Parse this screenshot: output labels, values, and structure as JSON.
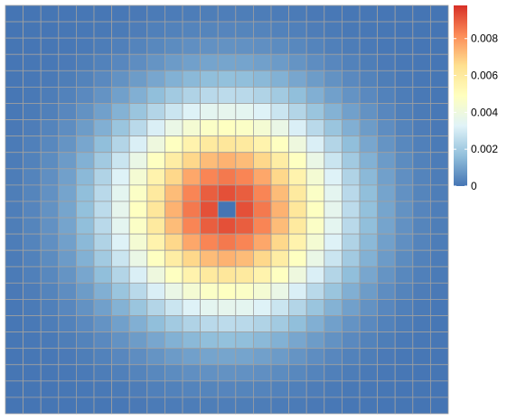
{
  "chart_data": {
    "type": "heatmap",
    "title": "",
    "xlabel": "",
    "ylabel": "",
    "grid": true,
    "legend_position": "right",
    "n_rows": 25,
    "n_cols": 25,
    "value_model": {
      "kind": "radial-gaussian",
      "peak_value": 0.0095,
      "center_row": 12,
      "center_col": 12,
      "sigma_cells": 4.3,
      "center_cell_value": 0
    },
    "colorbar": {
      "min": 0,
      "max": 0.0098,
      "ticks": [
        {
          "value": 0,
          "label": "0"
        },
        {
          "value": 0.002,
          "label": "0.002"
        },
        {
          "value": 0.004,
          "label": "0.004"
        },
        {
          "value": 0.006,
          "label": "0.006"
        },
        {
          "value": 0.008,
          "label": "0.008"
        }
      ],
      "colors": [
        "#4575B4",
        "#91BFDB",
        "#E0F3F8",
        "#FFFFBF",
        "#FEE090",
        "#FC8D59",
        "#D73027"
      ]
    }
  }
}
